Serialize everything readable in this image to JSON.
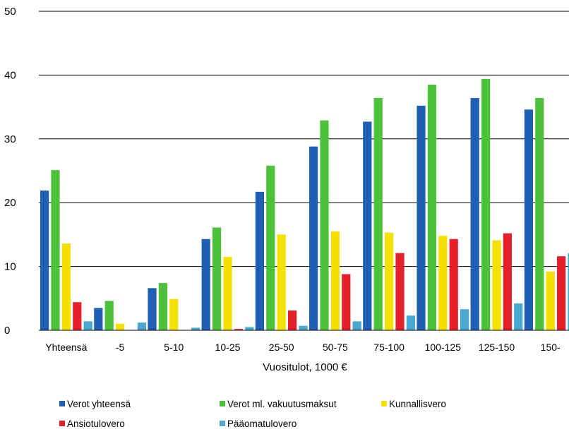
{
  "chart_data": {
    "type": "bar",
    "title": "",
    "xlabel": "Vuositulot, 1000 €",
    "ylabel": "",
    "ylim": [
      0,
      50
    ],
    "yticks": [
      0,
      10,
      20,
      30,
      40,
      50
    ],
    "grid": true,
    "legend_position": "bottom",
    "categories": [
      "Yhteensä",
      "-5",
      "5-10",
      "10-25",
      "25-50",
      "50-75",
      "75-100",
      "100-125",
      "125-150",
      "150-"
    ],
    "series": [
      {
        "name": "Verot yhteensä",
        "color": "#1f5fb4",
        "values": [
          21.9,
          3.5,
          6.6,
          14.3,
          21.7,
          28.8,
          32.7,
          35.2,
          36.4,
          34.6
        ]
      },
      {
        "name": "Verot ml. vakuutusmaksut",
        "color": "#4cc23a",
        "values": [
          25.1,
          4.6,
          7.4,
          16.1,
          25.8,
          32.9,
          36.4,
          38.5,
          39.4,
          36.4
        ]
      },
      {
        "name": "Kunnallisvero",
        "color": "#f5e100",
        "values": [
          13.6,
          1.0,
          4.9,
          11.5,
          15.0,
          15.5,
          15.3,
          14.8,
          14.1,
          9.2
        ]
      },
      {
        "name": "Ansiotulovero",
        "color": "#e5202b",
        "values": [
          4.4,
          0.0,
          0.0,
          0.2,
          3.1,
          8.8,
          12.1,
          14.3,
          15.2,
          11.6
        ]
      },
      {
        "name": "Pääomatulovero",
        "color": "#4aa8d0",
        "values": [
          1.4,
          1.2,
          0.4,
          0.5,
          0.7,
          1.4,
          2.3,
          3.3,
          4.2,
          12.1
        ]
      }
    ]
  }
}
